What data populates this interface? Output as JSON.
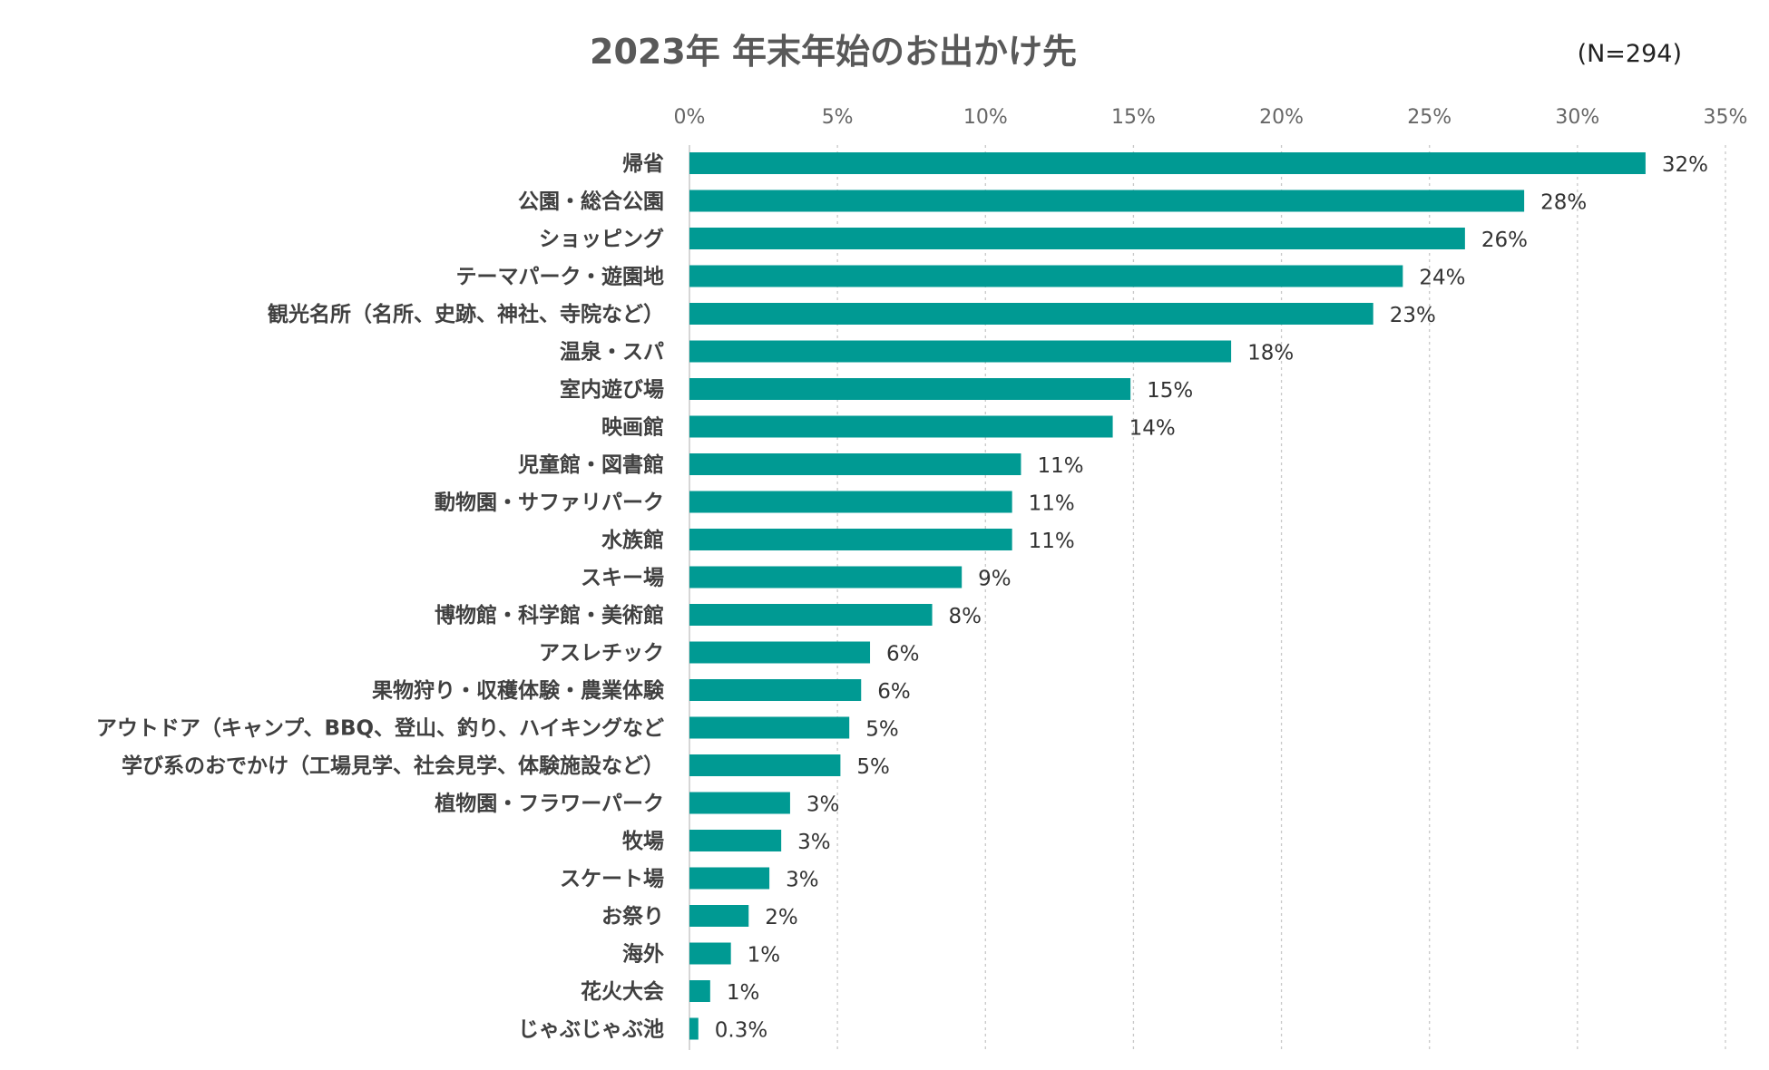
{
  "chart_data": {
    "type": "bar",
    "orientation": "horizontal",
    "title": "2023年 年末年始のお出かけ先",
    "sample_note": "(N=294)",
    "x_ticks": [
      "0%",
      "5%",
      "10%",
      "15%",
      "20%",
      "25%",
      "30%",
      "35%"
    ],
    "xlim": [
      0,
      35
    ],
    "bar_color": "#009a93",
    "categories": [
      "帰省",
      "公園・総合公園",
      "ショッピング",
      "テーマパーク・遊園地",
      "観光名所（名所、史跡、神社、寺院など）",
      "温泉・スパ",
      "室内遊び場",
      "映画館",
      "児童館・図書館",
      "動物園・サファリパーク",
      "水族館",
      "スキー場",
      "博物館・科学館・美術館",
      "アスレチック",
      "果物狩り・収穫体験・農業体験",
      "アウトドア（キャンプ、BBQ、登山、釣り、ハイキングなど",
      "学び系のおでかけ（工場見学、社会見学、体験施設など）",
      "植物園・フラワーパーク",
      "牧場",
      "スケート場",
      "お祭り",
      "海外",
      "花火大会",
      "じゃぶじゃぶ池"
    ],
    "values": [
      32.3,
      28.2,
      26.2,
      24.1,
      23.1,
      18.3,
      14.9,
      14.3,
      11.2,
      10.9,
      10.9,
      9.2,
      8.2,
      6.1,
      5.8,
      5.4,
      5.1,
      3.4,
      3.1,
      2.7,
      2.0,
      1.4,
      0.7,
      0.3
    ],
    "value_labels": [
      "32%",
      "28%",
      "26%",
      "24%",
      "23%",
      "18%",
      "15%",
      "14%",
      "11%",
      "11%",
      "11%",
      "9%",
      "8%",
      "6%",
      "6%",
      "5%",
      "5%",
      "3%",
      "3%",
      "3%",
      "2%",
      "1%",
      "1%",
      "0.3%"
    ]
  }
}
